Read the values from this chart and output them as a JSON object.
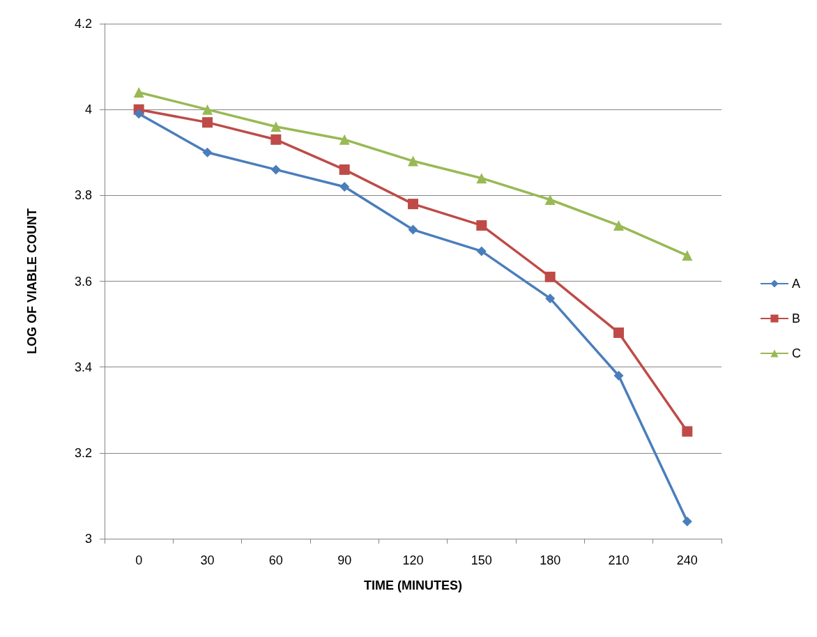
{
  "chart_data": {
    "type": "line",
    "xlabel": "TIME (MINUTES)",
    "ylabel": "LOG OF VIABLE COUNT",
    "categories": [
      "0",
      "30",
      "60",
      "90",
      "120",
      "150",
      "180",
      "210",
      "240"
    ],
    "series": [
      {
        "name": "A",
        "color": "#4a7ebb",
        "marker": "diamond",
        "values": [
          3.99,
          3.9,
          3.86,
          3.82,
          3.72,
          3.67,
          3.56,
          3.38,
          3.04
        ]
      },
      {
        "name": "B",
        "color": "#be4b48",
        "marker": "square",
        "values": [
          4.0,
          3.97,
          3.93,
          3.86,
          3.78,
          3.73,
          3.61,
          3.48,
          3.25
        ]
      },
      {
        "name": "C",
        "color": "#98b954",
        "marker": "triangle",
        "values": [
          4.04,
          4.0,
          3.96,
          3.93,
          3.88,
          3.84,
          3.79,
          3.73,
          3.66
        ]
      }
    ],
    "ylim": [
      3,
      4.2
    ],
    "yticks": [
      3,
      3.2,
      3.4,
      3.6,
      3.8,
      4,
      4.2
    ],
    "grid": "y",
    "legend": "right",
    "line_style": "solid"
  }
}
